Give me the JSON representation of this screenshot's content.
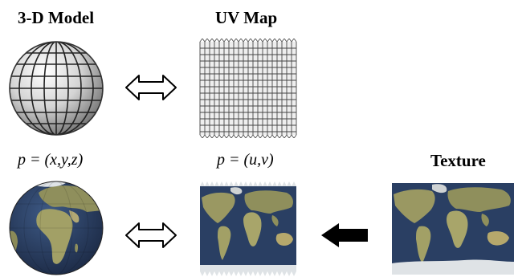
{
  "labels": {
    "model_title": "3-D Model",
    "uvmap_title": "UV Map",
    "texture_title": "Texture",
    "p_xyz": "p = (x,y,z)",
    "p_uv": "p = (u,v)"
  },
  "icons": {
    "wire_sphere": "wireframe-sphere-icon",
    "uv_grid": "uv-grid-icon",
    "earth_globe": "earth-globe-icon",
    "world_map": "world-map-icon",
    "double_arrow": "double-arrow-icon",
    "solid_arrow": "left-arrow-icon"
  },
  "colors": {
    "ocean": "#2a3f63",
    "land": "#9b9a62",
    "ice": "#dfe3e6",
    "grid_line": "#333333",
    "arrow": "#000000"
  }
}
